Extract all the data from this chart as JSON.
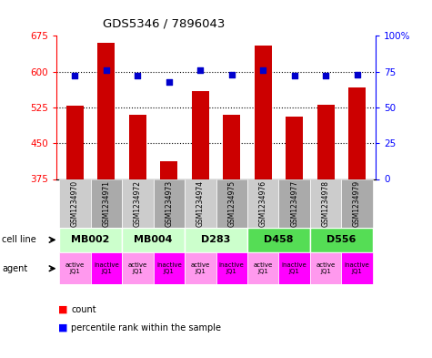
{
  "title": "GDS5346 / 7896043",
  "samples": [
    "GSM1234970",
    "GSM1234971",
    "GSM1234972",
    "GSM1234973",
    "GSM1234974",
    "GSM1234975",
    "GSM1234976",
    "GSM1234977",
    "GSM1234978",
    "GSM1234979"
  ],
  "counts": [
    528,
    660,
    510,
    413,
    560,
    510,
    655,
    505,
    530,
    567
  ],
  "percentiles": [
    72,
    76,
    72,
    68,
    76,
    73,
    76,
    72,
    72,
    73
  ],
  "cell_line_groups": [
    {
      "label": "MB002",
      "span": [
        0,
        2
      ],
      "color": "#ccffcc"
    },
    {
      "label": "MB004",
      "span": [
        2,
        4
      ],
      "color": "#ccffcc"
    },
    {
      "label": "D283",
      "span": [
        4,
        6
      ],
      "color": "#ccffcc"
    },
    {
      "label": "D458",
      "span": [
        6,
        8
      ],
      "color": "#55dd55"
    },
    {
      "label": "D556",
      "span": [
        8,
        10
      ],
      "color": "#55dd55"
    }
  ],
  "agents": [
    "active\nJQ1",
    "inactive\nJQ1",
    "active\nJQ1",
    "inactive\nJQ1",
    "active\nJQ1",
    "inactive\nJQ1",
    "active\nJQ1",
    "inactive\nJQ1",
    "active\nJQ1",
    "inactive\nJQ1"
  ],
  "agent_colors": [
    "#ff99ee",
    "#ff00ff",
    "#ff99ee",
    "#ff00ff",
    "#ff99ee",
    "#ff00ff",
    "#ff99ee",
    "#ff00ff",
    "#ff99ee",
    "#ff00ff"
  ],
  "ylim": [
    375,
    675
  ],
  "yticks": [
    375,
    450,
    525,
    600,
    675
  ],
  "y2ticks": [
    0,
    25,
    50,
    75,
    100
  ],
  "hgrid_vals": [
    450,
    525,
    600
  ],
  "bar_color": "#cc0000",
  "dot_color": "#0000cc",
  "sample_bg_even": "#cccccc",
  "sample_bg_odd": "#aaaaaa"
}
